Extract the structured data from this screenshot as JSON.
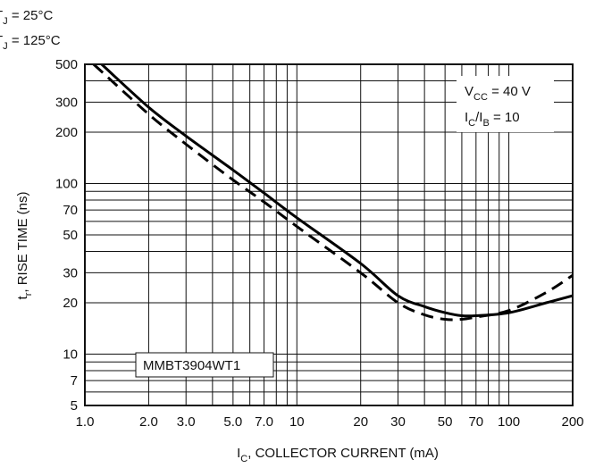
{
  "chart_data": {
    "type": "line",
    "title": "",
    "xscale": "log",
    "yscale": "log",
    "xlim": [
      1.0,
      200
    ],
    "ylim": [
      5,
      500
    ],
    "grid": true,
    "x_ticks": [
      {
        "value": 1.0,
        "label": "1.0"
      },
      {
        "value": 2.0,
        "label": "2.0"
      },
      {
        "value": 3.0,
        "label": "3.0"
      },
      {
        "value": 5.0,
        "label": "5.0"
      },
      {
        "value": 7.0,
        "label": "7.0"
      },
      {
        "value": 10,
        "label": "10"
      },
      {
        "value": 20,
        "label": "20"
      },
      {
        "value": 30,
        "label": "30"
      },
      {
        "value": 50,
        "label": "50"
      },
      {
        "value": 70,
        "label": "70"
      },
      {
        "value": 100,
        "label": "100"
      },
      {
        "value": 200,
        "label": "200"
      }
    ],
    "y_ticks": [
      {
        "value": 5,
        "label": "5"
      },
      {
        "value": 7,
        "label": "7"
      },
      {
        "value": 10,
        "label": "10"
      },
      {
        "value": 20,
        "label": "20"
      },
      {
        "value": 30,
        "label": "30"
      },
      {
        "value": 50,
        "label": "50"
      },
      {
        "value": 70,
        "label": "70"
      },
      {
        "value": 100,
        "label": "100"
      },
      {
        "value": 200,
        "label": "200"
      },
      {
        "value": 300,
        "label": "300"
      },
      {
        "value": 500,
        "label": "500"
      }
    ],
    "xlabel": {
      "main": "I",
      "sub": "C",
      "rest": ", COLLECTOR CURRENT (mA)"
    },
    "ylabel": {
      "main": "t",
      "sub": "r",
      "rest": ", RISE TIME (ns)"
    },
    "legend": [
      {
        "prefix": "T",
        "sub": "J",
        "rest": " = 25°C",
        "style": "solid"
      },
      {
        "prefix": "T",
        "sub": "J",
        "rest": " = 125°C",
        "style": "dashed"
      }
    ],
    "conditions": [
      {
        "a": "V",
        "asub": "CC",
        "b": " = 40 V",
        "bsub": "",
        "c": ""
      },
      {
        "a": "I",
        "asub": "C",
        "b": "/I",
        "bsub": "B",
        "c": " = 10"
      }
    ],
    "device_label": "MMBT3904WT1",
    "series": [
      {
        "style": "solid",
        "points": [
          [
            1.2,
            500
          ],
          [
            2.0,
            280
          ],
          [
            3.0,
            190
          ],
          [
            5.0,
            120
          ],
          [
            7.0,
            88
          ],
          [
            10,
            63
          ],
          [
            20,
            34
          ],
          [
            30,
            22
          ],
          [
            40,
            19
          ],
          [
            50,
            17.5
          ],
          [
            60,
            16.8
          ],
          [
            70,
            16.8
          ],
          [
            100,
            17.5
          ],
          [
            150,
            20
          ],
          [
            200,
            22
          ]
        ]
      },
      {
        "style": "dashed",
        "points": [
          [
            1.1,
            500
          ],
          [
            2.0,
            255
          ],
          [
            3.0,
            170
          ],
          [
            5.0,
            105
          ],
          [
            7.0,
            78
          ],
          [
            10,
            56
          ],
          [
            20,
            30
          ],
          [
            30,
            20
          ],
          [
            40,
            17
          ],
          [
            50,
            16
          ],
          [
            60,
            16
          ],
          [
            70,
            16.5
          ],
          [
            100,
            18
          ],
          [
            150,
            23
          ],
          [
            200,
            29
          ]
        ]
      }
    ]
  }
}
